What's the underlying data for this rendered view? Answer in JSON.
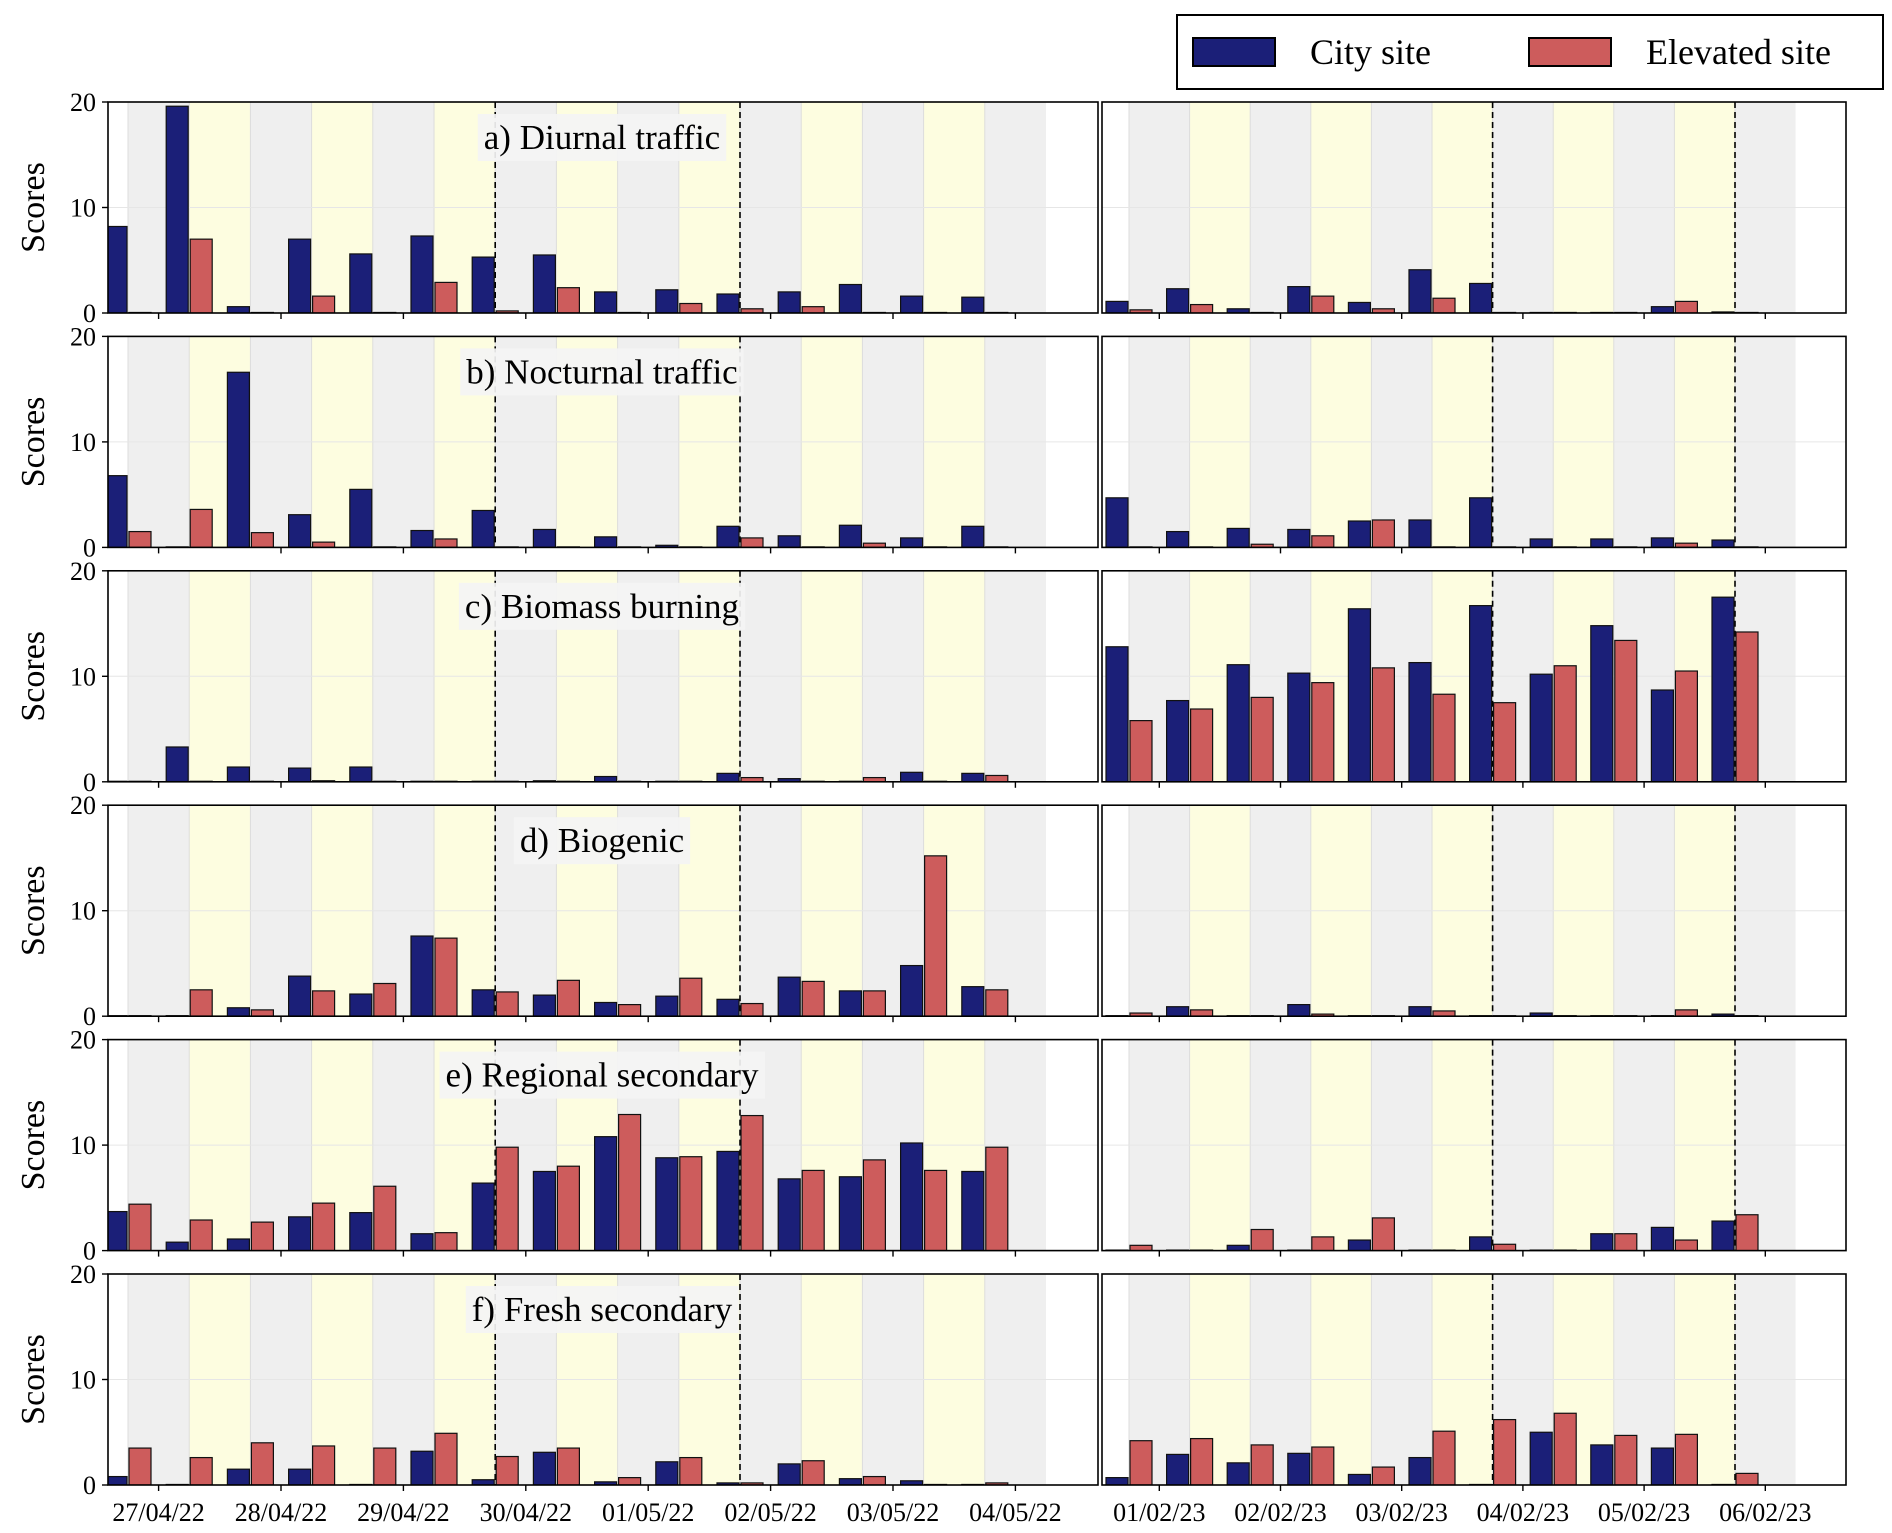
{
  "legend": {
    "city_label": "City site",
    "elevated_label": "Elevated site"
  },
  "colors": {
    "city": "#1b1f78",
    "elevated": "#cd5c5c",
    "night_band": "#efefef",
    "day_band": "#fdfde0"
  },
  "axis": {
    "ylabel": "Scores"
  },
  "chart_data": {
    "type": "bar",
    "ylim": [
      0,
      20
    ],
    "yticks": [
      0,
      10,
      20
    ],
    "grid": true,
    "legend_position": "top-right",
    "campaigns": [
      {
        "name": "spring",
        "xticklabels": [
          "27/04/22",
          "28/04/22",
          "29/04/22",
          "30/04/22",
          "01/05/22",
          "02/05/22",
          "03/05/22",
          "04/05/22"
        ],
        "n_intervals": 15,
        "dashed_at": [
          6,
          10
        ]
      },
      {
        "name": "winter",
        "xticklabels": [
          "01/02/23",
          "02/02/23",
          "03/02/23",
          "04/02/23",
          "05/02/23",
          "06/02/23"
        ],
        "n_intervals": 11,
        "dashed_at": [
          6,
          10
        ]
      }
    ],
    "panels": [
      {
        "title": "a) Diurnal traffic",
        "spring": {
          "city": [
            8.2,
            19.6,
            0.6,
            7.0,
            5.6,
            7.3,
            5.3,
            5.5,
            2.0,
            2.2,
            1.8,
            2.0,
            2.7,
            1.6,
            1.5
          ],
          "elevated": [
            0.05,
            7.0,
            0.05,
            1.6,
            0.05,
            2.9,
            0.2,
            2.4,
            0.05,
            0.9,
            0.4,
            0.6,
            0.05,
            0.05,
            0.05
          ]
        },
        "winter": {
          "city": [
            1.1,
            2.3,
            0.4,
            2.5,
            1.0,
            4.1,
            2.8,
            0.05,
            0.05,
            0.6,
            0.1
          ],
          "elevated": [
            0.3,
            0.8,
            0.05,
            1.6,
            0.4,
            1.4,
            0.05,
            0.05,
            0.05,
            1.1,
            0.05
          ]
        }
      },
      {
        "title": "b) Nocturnal traffic",
        "spring": {
          "city": [
            6.8,
            0.05,
            16.6,
            3.1,
            5.5,
            1.6,
            3.5,
            1.7,
            1.0,
            0.2,
            2.0,
            1.1,
            2.1,
            0.9,
            2.0
          ],
          "elevated": [
            1.5,
            3.6,
            1.4,
            0.5,
            0.05,
            0.8,
            0.05,
            0.05,
            0.05,
            0.05,
            0.9,
            0.05,
            0.4,
            0.05,
            0.05
          ]
        },
        "winter": {
          "city": [
            4.7,
            1.5,
            1.8,
            1.7,
            2.5,
            2.6,
            4.7,
            0.8,
            0.8,
            0.9,
            0.7
          ],
          "elevated": [
            0.05,
            0.05,
            0.3,
            1.1,
            2.6,
            0.05,
            0.05,
            0.05,
            0.05,
            0.4,
            0.05
          ]
        }
      },
      {
        "title": "c) Biomass burning",
        "spring": {
          "city": [
            0.05,
            3.3,
            1.4,
            1.3,
            1.4,
            0.05,
            0.05,
            0.1,
            0.5,
            0.05,
            0.8,
            0.3,
            0.05,
            0.9,
            0.8
          ],
          "elevated": [
            0.05,
            0.05,
            0.05,
            0.1,
            0.05,
            0.05,
            0.05,
            0.05,
            0.05,
            0.05,
            0.4,
            0.05,
            0.4,
            0.05,
            0.6
          ]
        },
        "winter": {
          "city": [
            12.8,
            7.7,
            11.1,
            10.3,
            16.4,
            11.3,
            16.7,
            10.2,
            14.8,
            8.7,
            17.5
          ],
          "elevated": [
            5.8,
            6.9,
            8.0,
            9.4,
            10.8,
            8.3,
            7.5,
            11.0,
            13.4,
            10.5,
            14.2
          ]
        }
      },
      {
        "title": "d) Biogenic",
        "spring": {
          "city": [
            0.05,
            0.05,
            0.8,
            3.8,
            2.1,
            7.6,
            2.5,
            2.0,
            1.3,
            1.9,
            1.6,
            3.7,
            2.4,
            4.8,
            2.8
          ],
          "elevated": [
            0.05,
            2.5,
            0.6,
            2.4,
            3.1,
            7.4,
            2.3,
            3.4,
            1.1,
            3.6,
            1.2,
            3.3,
            2.4,
            15.2,
            2.5
          ]
        },
        "winter": {
          "city": [
            0.05,
            0.9,
            0.05,
            1.1,
            0.05,
            0.9,
            0.05,
            0.3,
            0.05,
            0.05,
            0.2
          ],
          "elevated": [
            0.3,
            0.6,
            0.05,
            0.2,
            0.05,
            0.5,
            0.05,
            0.05,
            0.05,
            0.6,
            0.05
          ]
        }
      },
      {
        "title": "e) Regional secondary",
        "spring": {
          "city": [
            3.7,
            0.8,
            1.1,
            3.2,
            3.6,
            1.6,
            6.4,
            7.5,
            10.8,
            8.8,
            9.4,
            6.8,
            7.0,
            10.2,
            7.5
          ],
          "elevated": [
            4.4,
            2.9,
            2.7,
            4.5,
            6.1,
            1.7,
            9.8,
            8.0,
            12.9,
            8.9,
            12.8,
            7.6,
            8.6,
            7.6,
            9.8
          ]
        },
        "winter": {
          "city": [
            0.05,
            0.05,
            0.5,
            0.05,
            1.0,
            0.05,
            1.3,
            0.05,
            1.6,
            2.2,
            2.8
          ],
          "elevated": [
            0.5,
            0.05,
            2.0,
            1.3,
            3.1,
            0.05,
            0.6,
            0.05,
            1.6,
            1.0,
            3.4
          ]
        }
      },
      {
        "title": "f) Fresh secondary",
        "spring": {
          "city": [
            0.8,
            0.05,
            1.5,
            1.5,
            0.05,
            3.2,
            0.5,
            3.1,
            0.3,
            2.2,
            0.2,
            2.0,
            0.6,
            0.4,
            0.05
          ],
          "elevated": [
            3.5,
            2.6,
            4.0,
            3.7,
            3.5,
            4.9,
            2.7,
            3.5,
            0.7,
            2.6,
            0.2,
            2.3,
            0.8,
            0.05,
            0.2
          ]
        },
        "winter": {
          "city": [
            0.7,
            2.9,
            2.1,
            3.0,
            1.0,
            2.6,
            0.05,
            5.0,
            3.8,
            3.5,
            0.05
          ],
          "elevated": [
            4.2,
            4.4,
            3.8,
            3.6,
            1.7,
            5.1,
            6.2,
            6.8,
            4.7,
            4.8,
            1.1
          ]
        }
      }
    ]
  }
}
